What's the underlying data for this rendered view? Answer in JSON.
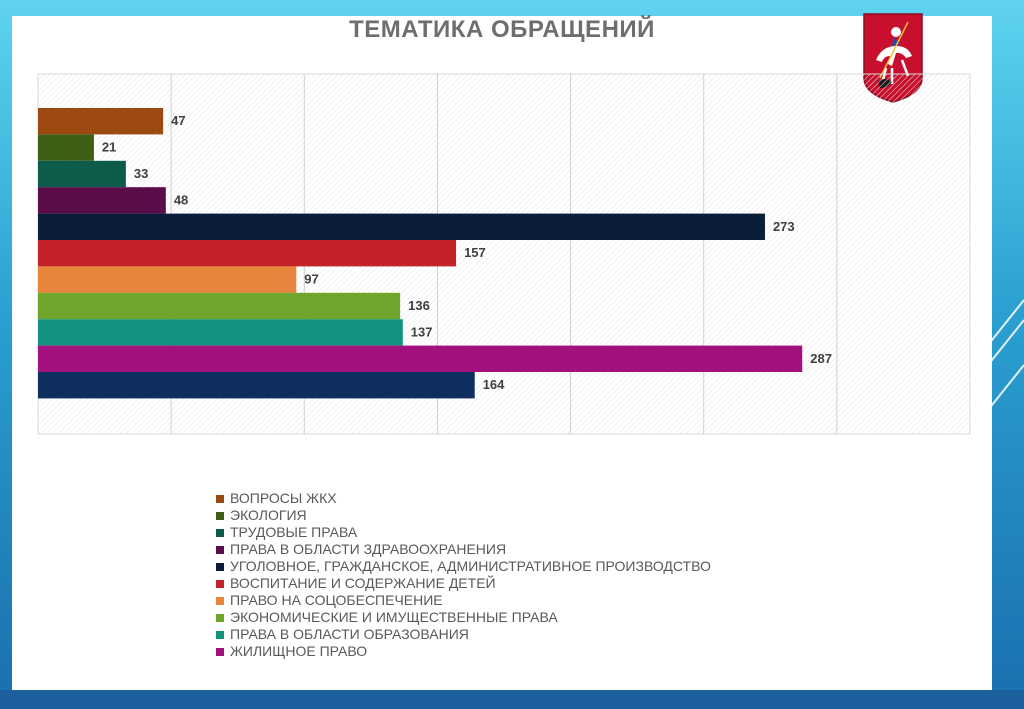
{
  "chart_data": {
    "type": "bar",
    "orientation": "horizontal",
    "title": "ТЕМАТИКА ОБРАЩЕНИЙ",
    "xlim": [
      0,
      350
    ],
    "grid": true,
    "legend_position": "bottom",
    "categories": [
      "ВОПРОСЫ ЖКХ",
      "ЭКОЛОГИЯ",
      "ТРУДОВЫЕ ПРАВА",
      "ПРАВА В ОБЛАСТИ ЗДРАВООХРАНЕНИЯ",
      "УГОЛОВНОЕ, ГРАЖДАНСКОЕ, АДМИНИСТРАТИВНОЕ ПРОИЗВОДСТВО",
      "ВОСПИТАНИЕ И СОДЕРЖАНИЕ ДЕТЕЙ",
      "ПРАВО НА СОЦОБЕСПЕЧЕНИЕ",
      "ЭКОНОМИЧЕСКИЕ И ИМУЩЕСТВЕННЫЕ ПРАВА",
      "ПРАВА В ОБЛАСТИ ОБРАЗОВАНИЯ",
      "ЖИЛИЩНОЕ ПРАВО",
      ""
    ],
    "values": [
      47,
      21,
      33,
      48,
      273,
      157,
      97,
      136,
      137,
      287,
      164
    ],
    "data_labels": [
      "47",
      "21",
      "33",
      "48",
      "273",
      "157",
      "97",
      "136",
      "137",
      "287",
      "164"
    ],
    "colors": [
      "#9c4a12",
      "#3f5f17",
      "#0d5c4b",
      "#5b0d4a",
      "#0b1d3a",
      "#c4222a",
      "#e8843b",
      "#6fa52c",
      "#13937f",
      "#a3117f",
      "#0e2f5e"
    ]
  }
}
